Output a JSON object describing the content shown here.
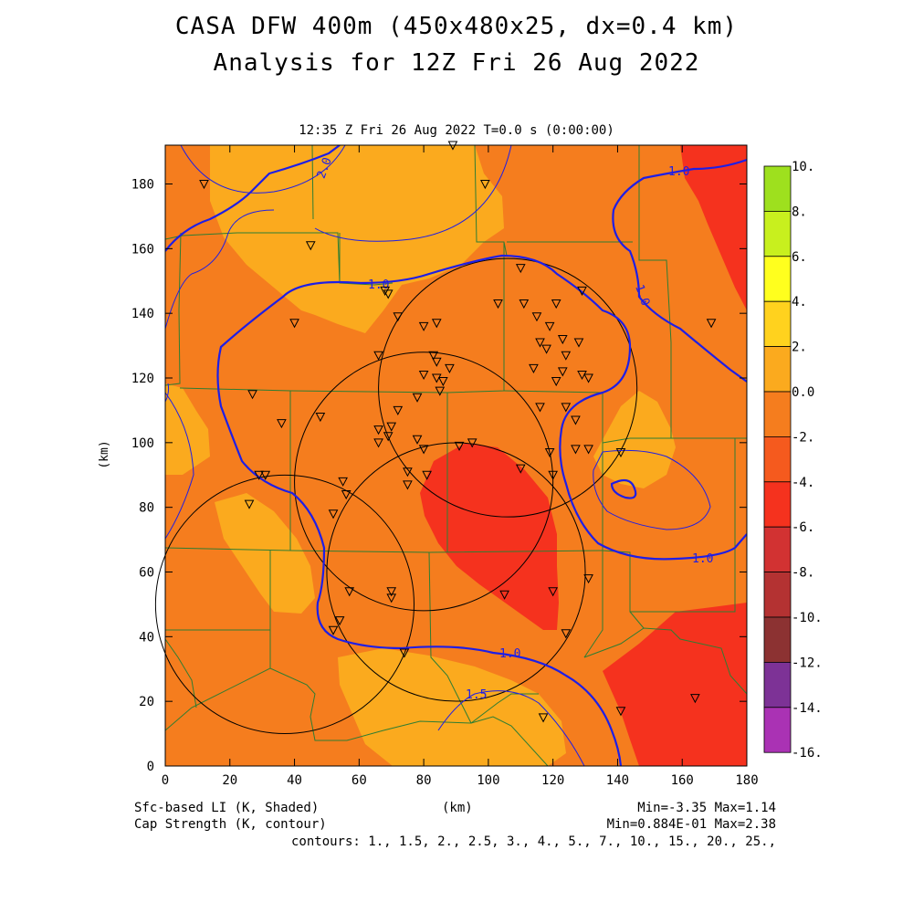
{
  "title_line1": "CASA DFW 400m (450x480x25, dx=0.4 km)",
  "title_line2": "Analysis for 12Z Fri 26 Aug 2022",
  "time_label": "12:35 Z Fri 26 Aug 2022   T=0.0 s (0:00:00)",
  "x_axis": {
    "label": "(km)",
    "ticks": [
      "0",
      "20",
      "40",
      "60",
      "80",
      "100",
      "120",
      "140",
      "160",
      "180"
    ],
    "range": [
      0,
      180
    ]
  },
  "y_axis": {
    "label": "(km)",
    "ticks": [
      "0",
      "20",
      "40",
      "60",
      "80",
      "100",
      "120",
      "140",
      "160",
      "180"
    ],
    "range": [
      0,
      192
    ]
  },
  "colorbar": {
    "labels": [
      "10.",
      "8.",
      "6.",
      "4.",
      "2.",
      "0.0",
      "-2.",
      "-4.",
      "-6.",
      "-8.",
      "-10.",
      "-12.",
      "-14.",
      "-16."
    ],
    "colors": [
      "#9ee01e",
      "#c8f01e",
      "#ffff1e",
      "#ffd21e",
      "#fbaa1e",
      "#f57d1e",
      "#f55a1e",
      "#f5321e",
      "#d23232",
      "#b43232",
      "#8c3232",
      "#7d3296",
      "#aa32b4",
      "#d246dc"
    ]
  },
  "footer": {
    "left1": "Sfc-based LI (K, Shaded)",
    "left2": "Cap Strength (K, contour)",
    "center": "(km)",
    "right1": "Min=-3.35 Max=1.14",
    "right2": "Min=0.884E-01 Max=2.38",
    "contours": "contours: 1., 1.5, 2., 2.5, 3., 4., 5., 7., 10., 15., 20., 25.,"
  },
  "contour_labels": [
    "2.0",
    "1.0",
    "1.0",
    "1.0",
    "1.0",
    "1.5"
  ],
  "field_colors": {
    "base": "#f57d1e",
    "warm": "#fbaa1e",
    "red": "#f5321e",
    "contour": "#1e1ee6",
    "county": "#2e7d32"
  },
  "chart_data": {
    "type": "heatmap",
    "fields": [
      "Sfc-based LI (K, Shaded)",
      "Cap Strength (K, contour)"
    ],
    "li_min": -3.35,
    "li_max": 1.14,
    "cap_min": 0.0884,
    "cap_max": 2.38,
    "contour_levels": [
      1,
      1.5,
      2,
      2.5,
      3,
      4,
      5,
      7,
      10,
      15,
      20,
      25
    ],
    "colorbar_levels": [
      10,
      8,
      6,
      4,
      2,
      0,
      -2,
      -4,
      -6,
      -8,
      -10,
      -12,
      -14,
      -16
    ],
    "xlim": [
      0,
      180
    ],
    "ylim": [
      0,
      192
    ],
    "radar_circles": [
      {
        "cx": 106,
        "cy": 117,
        "r": 40
      },
      {
        "cx": 80,
        "cy": 88,
        "r": 40
      },
      {
        "cx": 37,
        "cy": 50,
        "r": 40
      },
      {
        "cx": 90,
        "cy": 60,
        "r": 40
      }
    ],
    "stations": [
      [
        12,
        180
      ],
      [
        45,
        161
      ],
      [
        40,
        137
      ],
      [
        27,
        115
      ],
      [
        36,
        106
      ],
      [
        48,
        108
      ],
      [
        31,
        90
      ],
      [
        29,
        90
      ],
      [
        26,
        81
      ],
      [
        55,
        88
      ],
      [
        56,
        84
      ],
      [
        52,
        78
      ],
      [
        54,
        45
      ],
      [
        52,
        42
      ],
      [
        57,
        54
      ],
      [
        70,
        54
      ],
      [
        70,
        52
      ],
      [
        74,
        35
      ],
      [
        66,
        127
      ],
      [
        72,
        139
      ],
      [
        68,
        147
      ],
      [
        69,
        146
      ],
      [
        80,
        136
      ],
      [
        84,
        137
      ],
      [
        83,
        127
      ],
      [
        84,
        125
      ],
      [
        80,
        121
      ],
      [
        88,
        123
      ],
      [
        78,
        114
      ],
      [
        85,
        116
      ],
      [
        86,
        119
      ],
      [
        84,
        120
      ],
      [
        66,
        104
      ],
      [
        70,
        105
      ],
      [
        69,
        102
      ],
      [
        66,
        100
      ],
      [
        72,
        110
      ],
      [
        78,
        101
      ],
      [
        80,
        98
      ],
      [
        91,
        99
      ],
      [
        95,
        100
      ],
      [
        81,
        90
      ],
      [
        75,
        91
      ],
      [
        75,
        87
      ],
      [
        89,
        192
      ],
      [
        99,
        180
      ],
      [
        110,
        154
      ],
      [
        103,
        143
      ],
      [
        111,
        143
      ],
      [
        115,
        139
      ],
      [
        121,
        143
      ],
      [
        129,
        147
      ],
      [
        119,
        136
      ],
      [
        116,
        131
      ],
      [
        123,
        132
      ],
      [
        118,
        129
      ],
      [
        124,
        127
      ],
      [
        128,
        131
      ],
      [
        114,
        123
      ],
      [
        123,
        122
      ],
      [
        121,
        119
      ],
      [
        129,
        121
      ],
      [
        131,
        120
      ],
      [
        116,
        111
      ],
      [
        124,
        111
      ],
      [
        127,
        107
      ],
      [
        119,
        97
      ],
      [
        127,
        98
      ],
      [
        131,
        98
      ],
      [
        141,
        97
      ],
      [
        110,
        92
      ],
      [
        120,
        90
      ],
      [
        120,
        54
      ],
      [
        105,
        53
      ],
      [
        131,
        58
      ],
      [
        124,
        41
      ],
      [
        117,
        15
      ],
      [
        141,
        17
      ],
      [
        164,
        21
      ],
      [
        169,
        137
      ]
    ]
  }
}
